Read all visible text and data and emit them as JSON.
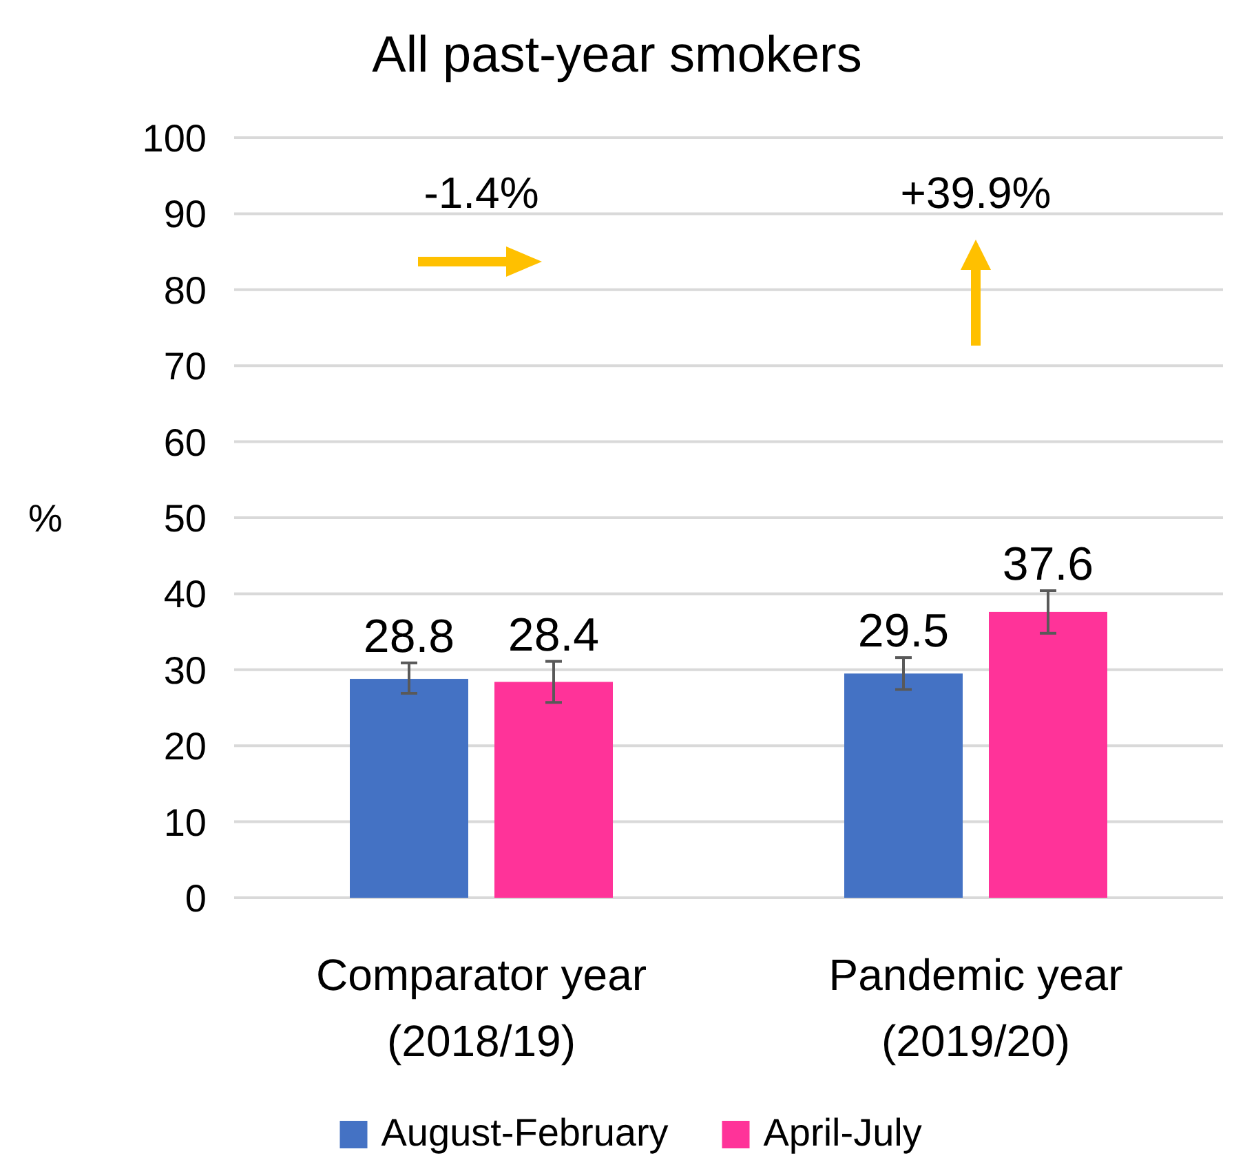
{
  "chart_data": {
    "type": "bar",
    "title": "All past-year smokers",
    "ylabel": "%",
    "categories": [
      "Comparator year (2018/19)",
      "Pandemic year (2019/20)"
    ],
    "series": [
      {
        "name": "August-February",
        "color": "#4472c4",
        "values": [
          28.8,
          29.5
        ],
        "errors": [
          [
            26.9,
            30.9
          ],
          [
            27.4,
            31.6
          ]
        ]
      },
      {
        "name": "April-July",
        "color": "#ff3399",
        "values": [
          28.4,
          37.6
        ],
        "errors": [
          [
            25.7,
            31.1
          ],
          [
            34.8,
            40.4
          ]
        ]
      }
    ],
    "annotations": [
      "-1.4%",
      "+39.9%"
    ],
    "ylim": [
      0,
      100
    ],
    "yticks": [
      0,
      10,
      20,
      30,
      40,
      50,
      60,
      70,
      80,
      90,
      100
    ],
    "grid": "y",
    "data_labels": true,
    "legend": "bottom"
  }
}
